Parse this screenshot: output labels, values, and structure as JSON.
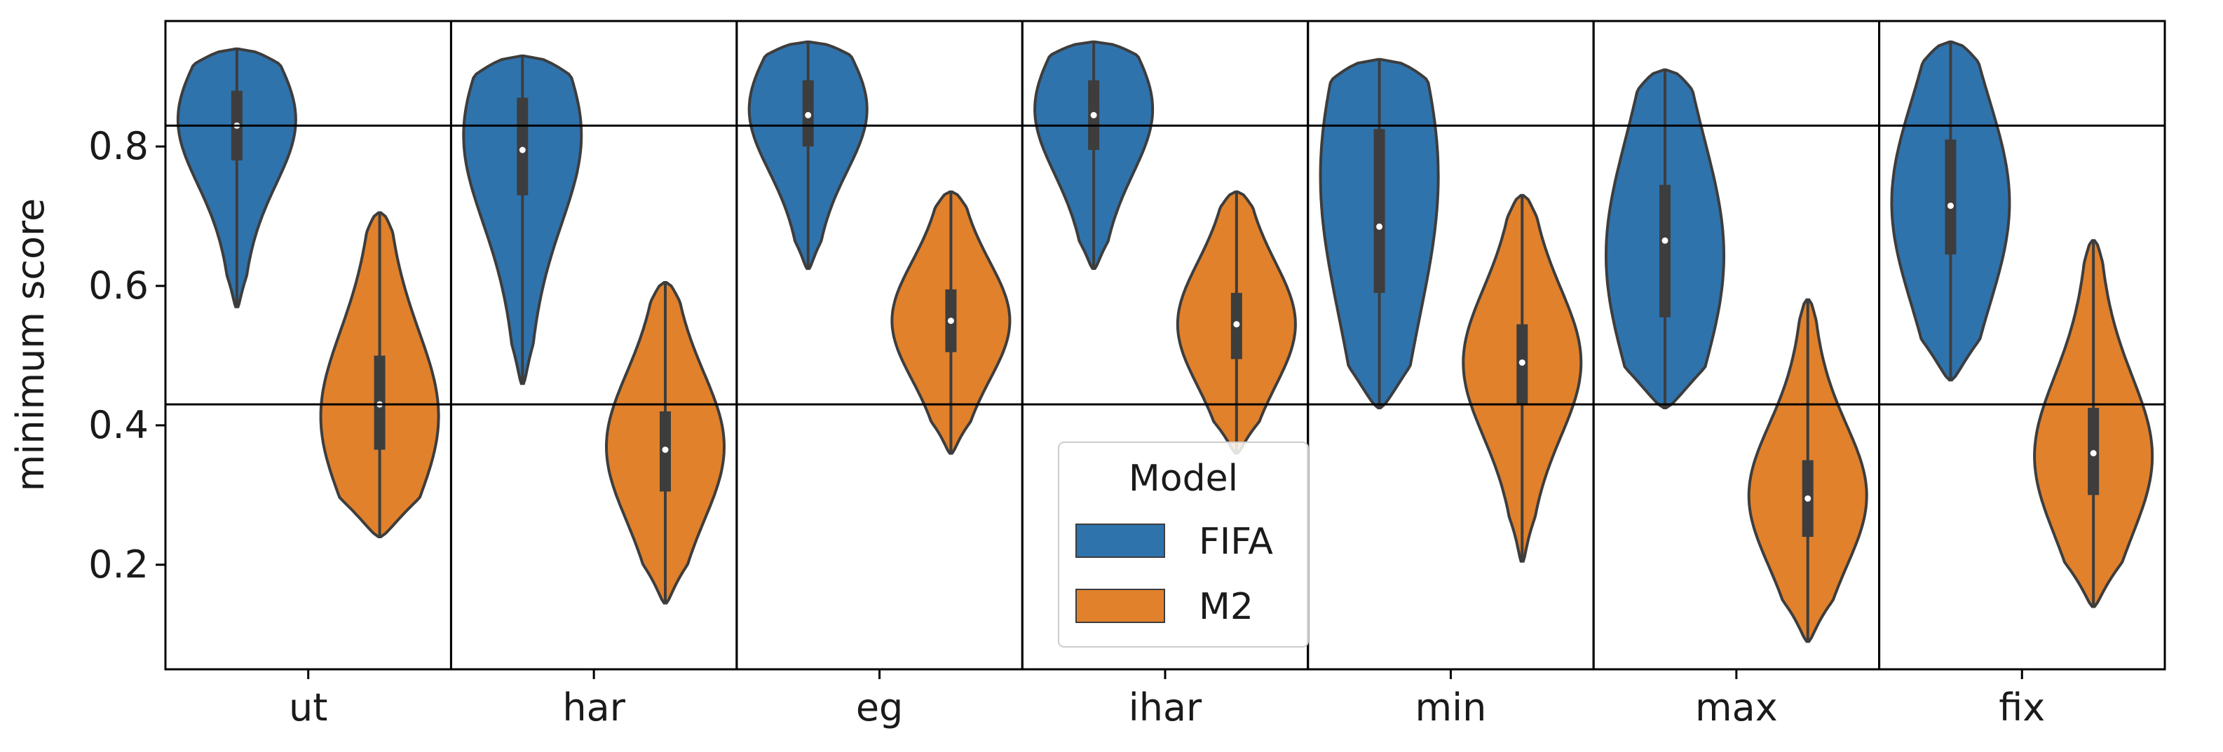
{
  "chart_data": {
    "type": "violin",
    "categories": [
      "ut",
      "har",
      "eg",
      "ihar",
      "min",
      "max",
      "fix"
    ],
    "ylabel": "minimum score",
    "xlabel": "",
    "ylim": [
      0.05,
      0.98
    ],
    "yticks": [
      0.2,
      0.4,
      0.6,
      0.8
    ],
    "ytick_labels": [
      "0.2",
      "0.4",
      "0.6",
      "0.8"
    ],
    "reference_lines": [
      0.83,
      0.43
    ],
    "legend": {
      "title": "Model",
      "placement": "lower-center"
    },
    "series": [
      {
        "name": "FIFA",
        "color": "#2f73ad",
        "stats": [
          {
            "min": 0.57,
            "q1": 0.78,
            "median": 0.83,
            "q3": 0.88,
            "max": 0.94,
            "mode": 0.84
          },
          {
            "min": 0.46,
            "q1": 0.73,
            "median": 0.795,
            "q3": 0.87,
            "max": 0.93,
            "mode": 0.82
          },
          {
            "min": 0.625,
            "q1": 0.8,
            "median": 0.845,
            "q3": 0.895,
            "max": 0.95,
            "mode": 0.855
          },
          {
            "min": 0.625,
            "q1": 0.795,
            "median": 0.845,
            "q3": 0.895,
            "max": 0.95,
            "mode": 0.855
          },
          {
            "min": 0.425,
            "q1": 0.59,
            "median": 0.685,
            "q3": 0.825,
            "max": 0.925,
            "mode": 0.77
          },
          {
            "min": 0.425,
            "q1": 0.555,
            "median": 0.665,
            "q3": 0.745,
            "max": 0.91,
            "mode": 0.64
          },
          {
            "min": 0.465,
            "q1": 0.645,
            "median": 0.715,
            "q3": 0.81,
            "max": 0.95,
            "mode": 0.72
          }
        ]
      },
      {
        "name": "M2",
        "color": "#e1812c",
        "stats": [
          {
            "min": 0.24,
            "q1": 0.365,
            "median": 0.43,
            "q3": 0.5,
            "max": 0.705,
            "mode": 0.41
          },
          {
            "min": 0.145,
            "q1": 0.305,
            "median": 0.365,
            "q3": 0.42,
            "max": 0.605,
            "mode": 0.37
          },
          {
            "min": 0.36,
            "q1": 0.505,
            "median": 0.55,
            "q3": 0.595,
            "max": 0.735,
            "mode": 0.55
          },
          {
            "min": 0.36,
            "q1": 0.495,
            "median": 0.545,
            "q3": 0.59,
            "max": 0.735,
            "mode": 0.545
          },
          {
            "min": 0.205,
            "q1": 0.43,
            "median": 0.49,
            "q3": 0.545,
            "max": 0.73,
            "mode": 0.49
          },
          {
            "min": 0.09,
            "q1": 0.24,
            "median": 0.295,
            "q3": 0.35,
            "max": 0.58,
            "mode": 0.3
          },
          {
            "min": 0.14,
            "q1": 0.3,
            "median": 0.36,
            "q3": 0.425,
            "max": 0.665,
            "mode": 0.355
          }
        ]
      }
    ]
  }
}
